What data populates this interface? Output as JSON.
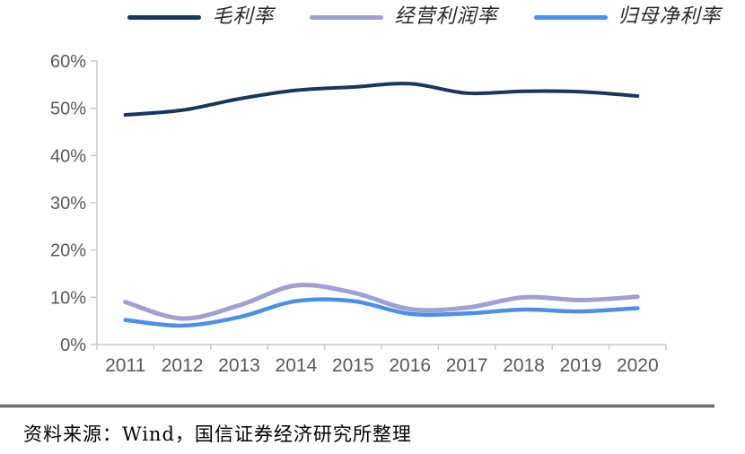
{
  "chart_data": {
    "type": "line",
    "x": [
      2011,
      2012,
      2013,
      2014,
      2015,
      2016,
      2017,
      2018,
      2019,
      2020
    ],
    "series": [
      {
        "name": "毛利率",
        "color": "#17375e",
        "stroke_width": 4,
        "values": [
          48.6,
          49.6,
          52.0,
          53.8,
          54.5,
          55.2,
          53.2,
          53.6,
          53.5,
          52.6
        ]
      },
      {
        "name": "经营利润率",
        "color": "#a0a0d2",
        "stroke_width": 5,
        "values": [
          9.0,
          5.5,
          8.3,
          12.5,
          11.0,
          7.5,
          7.8,
          10.0,
          9.4,
          10.1
        ]
      },
      {
        "name": "归母净利率",
        "color": "#4a8fe9",
        "stroke_width": 4.5,
        "values": [
          5.2,
          4.0,
          5.8,
          9.2,
          9.2,
          6.5,
          6.6,
          7.4,
          7.0,
          7.7
        ]
      }
    ],
    "title": "",
    "xlabel": "",
    "ylabel": "",
    "ylim": [
      0,
      60
    ],
    "ytick_step": 10,
    "grid": false,
    "legend_position": "top"
  },
  "axis": {
    "y_ticks": [
      "60%",
      "50%",
      "40%",
      "30%",
      "20%",
      "10%",
      "0%"
    ],
    "x_ticks": [
      "2011",
      "2012",
      "2013",
      "2014",
      "2015",
      "2016",
      "2017",
      "2018",
      "2019",
      "2020"
    ]
  },
  "footer": {
    "source_text": "资料来源：Wind，国信证券经济研究所整理"
  },
  "colors": {
    "axis_line": "#c9c9c9",
    "tick_label": "#595959",
    "separator": "#000000"
  }
}
